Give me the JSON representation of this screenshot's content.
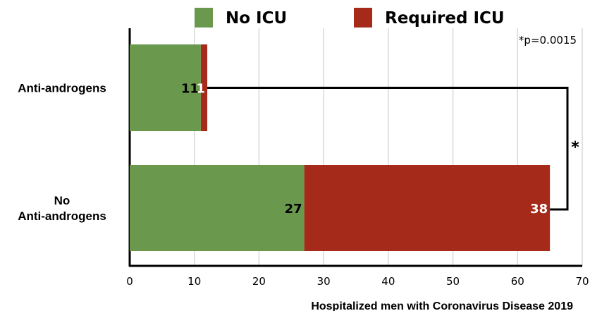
{
  "chart_data": {
    "type": "bar",
    "orientation": "horizontal",
    "stacked": true,
    "categories": [
      "Anti-androgens",
      "No\nAnti-androgens"
    ],
    "series": [
      {
        "name": "No ICU",
        "values": [
          11,
          27
        ],
        "color": "#6a994e",
        "label_color": "#000000"
      },
      {
        "name": "Required ICU",
        "values": [
          1,
          38
        ],
        "color": "#a52a1a",
        "label_color": "#ffffff"
      }
    ],
    "xlabel": "Hospitalized men with Coronavirus Disease 2019",
    "xlim": [
      0,
      70
    ],
    "xticks": [
      0,
      10,
      20,
      30,
      40,
      50,
      60,
      70
    ],
    "grid": true,
    "legend_position": "top",
    "annotation": "*p=0.0015",
    "significance_marker": "*"
  }
}
